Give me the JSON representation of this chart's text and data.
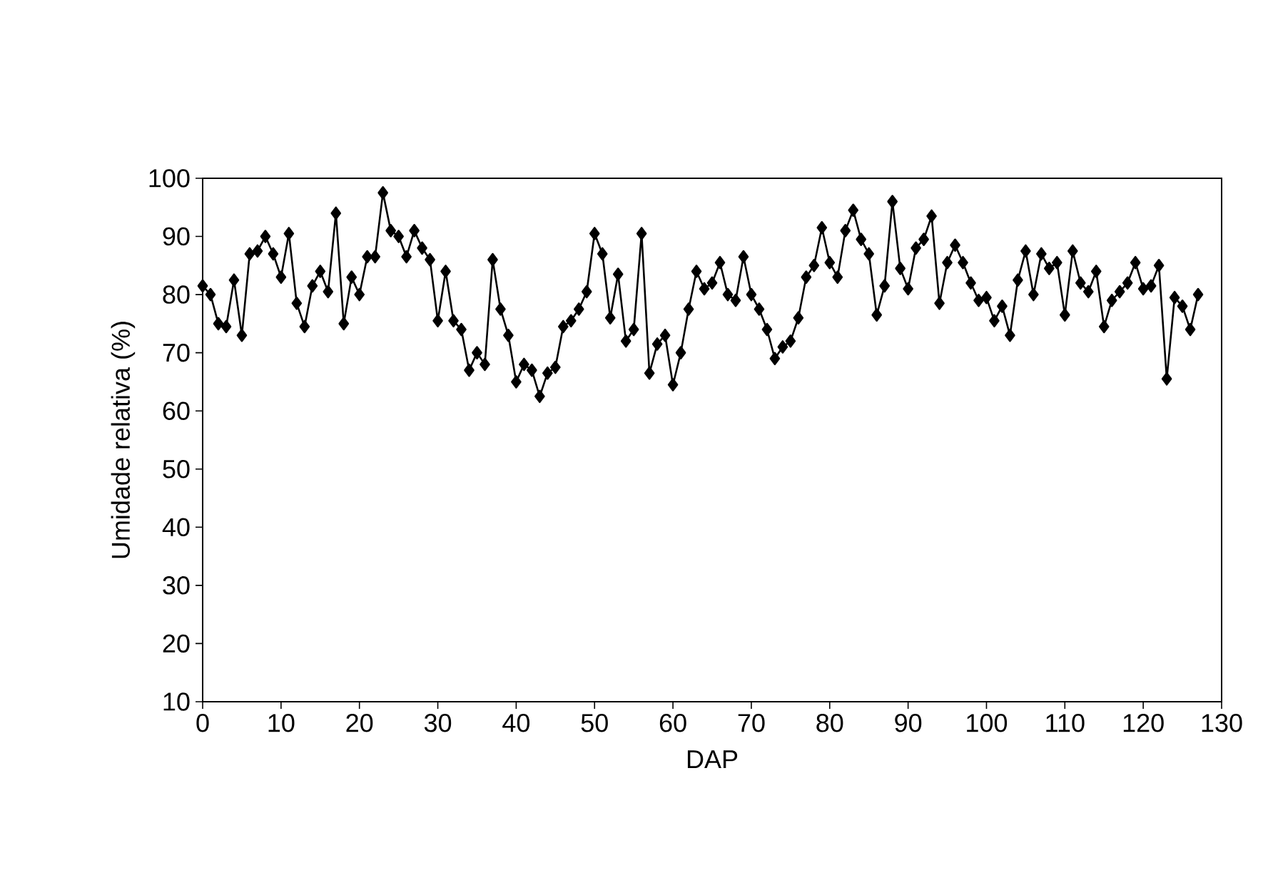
{
  "chart_data": {
    "type": "line",
    "xlabel": "DAP",
    "ylabel": "Umidade relativa (%)",
    "x": [
      0,
      1,
      2,
      3,
      4,
      5,
      6,
      7,
      8,
      9,
      10,
      11,
      12,
      13,
      14,
      15,
      16,
      17,
      18,
      19,
      20,
      21,
      22,
      23,
      24,
      25,
      26,
      27,
      28,
      29,
      30,
      31,
      32,
      33,
      34,
      35,
      36,
      37,
      38,
      39,
      40,
      41,
      42,
      43,
      44,
      45,
      46,
      47,
      48,
      49,
      50,
      51,
      52,
      53,
      54,
      55,
      56,
      57,
      58,
      59,
      60,
      61,
      62,
      63,
      64,
      65,
      66,
      67,
      68,
      69,
      70,
      71,
      72,
      73,
      74,
      75,
      76,
      77,
      78,
      79,
      80,
      81,
      82,
      83,
      84,
      85,
      86,
      87,
      88,
      89,
      90,
      91,
      92,
      93,
      94,
      95,
      96,
      97,
      98,
      99,
      100,
      101,
      102,
      103,
      104,
      105,
      106,
      107,
      108,
      109,
      110,
      111,
      112,
      113,
      114,
      115,
      116,
      117,
      118,
      119,
      120,
      121,
      122,
      123,
      124,
      125,
      126,
      127
    ],
    "series": [
      {
        "color": "#000000",
        "values": [
          81.5,
          80,
          75,
          74.5,
          82.5,
          73,
          87,
          87.5,
          90,
          87,
          83,
          90.5,
          78.5,
          74.5,
          81.5,
          84,
          80.5,
          94,
          75,
          83,
          80,
          86.5,
          86.5,
          97.5,
          91,
          90,
          86.5,
          91,
          88,
          86,
          75.5,
          84,
          75.5,
          74,
          67,
          70,
          68,
          86,
          77.5,
          73,
          65,
          68,
          67,
          62.5,
          66.5,
          67.5,
          74.5,
          75.5,
          77.5,
          80.5,
          90.5,
          87,
          76,
          83.5,
          72,
          74,
          90.5,
          66.5,
          71.5,
          73,
          64.5,
          70,
          77.5,
          84,
          81,
          82,
          85.5,
          80,
          79,
          86.5,
          80,
          77.5,
          74,
          69,
          71,
          72,
          76,
          83,
          85,
          91.5,
          85.5,
          83,
          91,
          94.5,
          89.5,
          87,
          76.5,
          81.5,
          96,
          84.5,
          81,
          88,
          89.5,
          93.5,
          78.5,
          85.5,
          88.5,
          85.5,
          82,
          79,
          79.5,
          75.5,
          78,
          73,
          82.5,
          87.5,
          80,
          87,
          84.5,
          85.5,
          76.5,
          87.5,
          82,
          80.5,
          84,
          74.5,
          79,
          80.5,
          82,
          85.5,
          81,
          81.5,
          85,
          65.5,
          79.5,
          78,
          74,
          80
        ]
      }
    ],
    "xlim": [
      0,
      130
    ],
    "xticks": [
      0,
      10,
      20,
      30,
      40,
      50,
      60,
      70,
      80,
      90,
      100,
      110,
      120,
      130
    ],
    "ylim": [
      10,
      100
    ],
    "yticks": [
      10,
      20,
      30,
      40,
      50,
      60,
      70,
      80,
      90,
      100
    ],
    "marker": "diamond",
    "line_style": "solid",
    "grid": false
  }
}
